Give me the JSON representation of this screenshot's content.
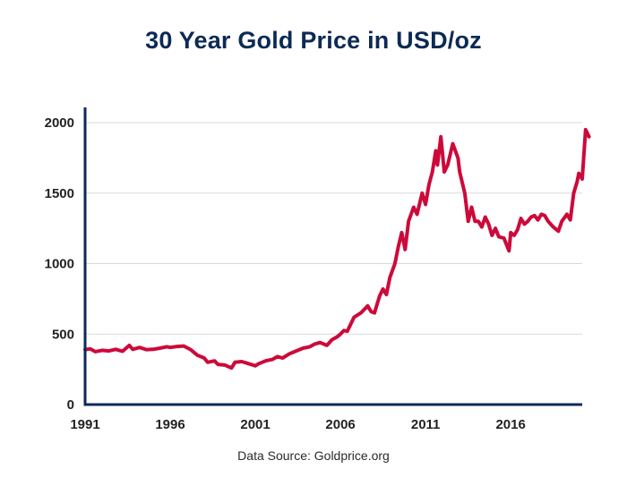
{
  "colors": {
    "title": "#0b2a55",
    "line": "#cc0a3a",
    "axis": "#0b2a55",
    "grid": "#d9d9d9"
  },
  "source_text": "Data Source: Goldprice.org",
  "chart_data": {
    "type": "line",
    "title": "30 Year Gold Price in USD/oz",
    "xlabel": "",
    "ylabel": "",
    "xlim": [
      1991,
      2020.2
    ],
    "ylim": [
      0,
      2000
    ],
    "x_ticks": [
      1991,
      1996,
      2001,
      2006,
      2011,
      2016
    ],
    "y_ticks": [
      0,
      500,
      1000,
      1500,
      2000
    ],
    "grid": "horizontal",
    "series": [
      {
        "x": [
          1991.0,
          1991.3,
          1991.6,
          1992.0,
          1992.4,
          1992.8,
          1993.2,
          1993.6,
          1993.8,
          1994.2,
          1994.6,
          1995.0,
          1995.4,
          1995.8,
          1996.0,
          1996.4,
          1996.8,
          1997.2,
          1997.6,
          1998.0,
          1998.2,
          1998.6,
          1998.8,
          1999.2,
          1999.6,
          1999.8,
          2000.2,
          2000.6,
          2001.0,
          2001.2,
          2001.4,
          2001.6,
          2002.0,
          2002.3,
          2002.6,
          2003.0,
          2003.4,
          2003.8,
          2004.2,
          2004.5,
          2004.8,
          2005.2,
          2005.5,
          2005.8,
          2006.0,
          2006.2,
          2006.4,
          2006.8,
          2007.2,
          2007.6,
          2007.8,
          2008.0,
          2008.3,
          2008.5,
          2008.7,
          2008.9,
          2009.2,
          2009.4,
          2009.6,
          2009.8,
          2010.0,
          2010.3,
          2010.5,
          2010.8,
          2011.0,
          2011.2,
          2011.4,
          2011.6,
          2011.7,
          2011.9,
          2012.1,
          2012.3,
          2012.6,
          2012.9,
          2013.0,
          2013.3,
          2013.5,
          2013.7,
          2013.9,
          2014.1,
          2014.3,
          2014.5,
          2014.7,
          2014.9,
          2015.1,
          2015.3,
          2015.6,
          2015.9,
          2016.0,
          2016.2,
          2016.4,
          2016.6,
          2016.8,
          2017.0,
          2017.2,
          2017.4,
          2017.6,
          2017.8,
          2018.0,
          2018.2,
          2018.5,
          2018.8,
          2019.0,
          2019.3,
          2019.5,
          2019.7,
          2019.9,
          2020.0,
          2020.2,
          2020.4,
          2020.6
        ],
        "values": [
          390,
          395,
          375,
          385,
          380,
          392,
          378,
          420,
          392,
          405,
          390,
          392,
          400,
          410,
          405,
          412,
          415,
          390,
          350,
          330,
          300,
          310,
          285,
          280,
          260,
          300,
          305,
          290,
          275,
          290,
          300,
          310,
          320,
          340,
          330,
          360,
          380,
          400,
          410,
          430,
          440,
          420,
          460,
          480,
          500,
          525,
          520,
          620,
          650,
          700,
          660,
          650,
          770,
          820,
          780,
          900,
          1000,
          1120,
          1220,
          1100,
          1300,
          1400,
          1350,
          1500,
          1420,
          1560,
          1650,
          1800,
          1700,
          1900,
          1650,
          1700,
          1850,
          1750,
          1650,
          1500,
          1300,
          1400,
          1300,
          1300,
          1260,
          1330,
          1280,
          1200,
          1250,
          1190,
          1180,
          1090,
          1220,
          1200,
          1240,
          1320,
          1280,
          1300,
          1330,
          1340,
          1310,
          1350,
          1340,
          1300,
          1260,
          1230,
          1300,
          1350,
          1310,
          1500,
          1580,
          1640,
          1600,
          1950,
          1900
        ]
      }
    ]
  }
}
